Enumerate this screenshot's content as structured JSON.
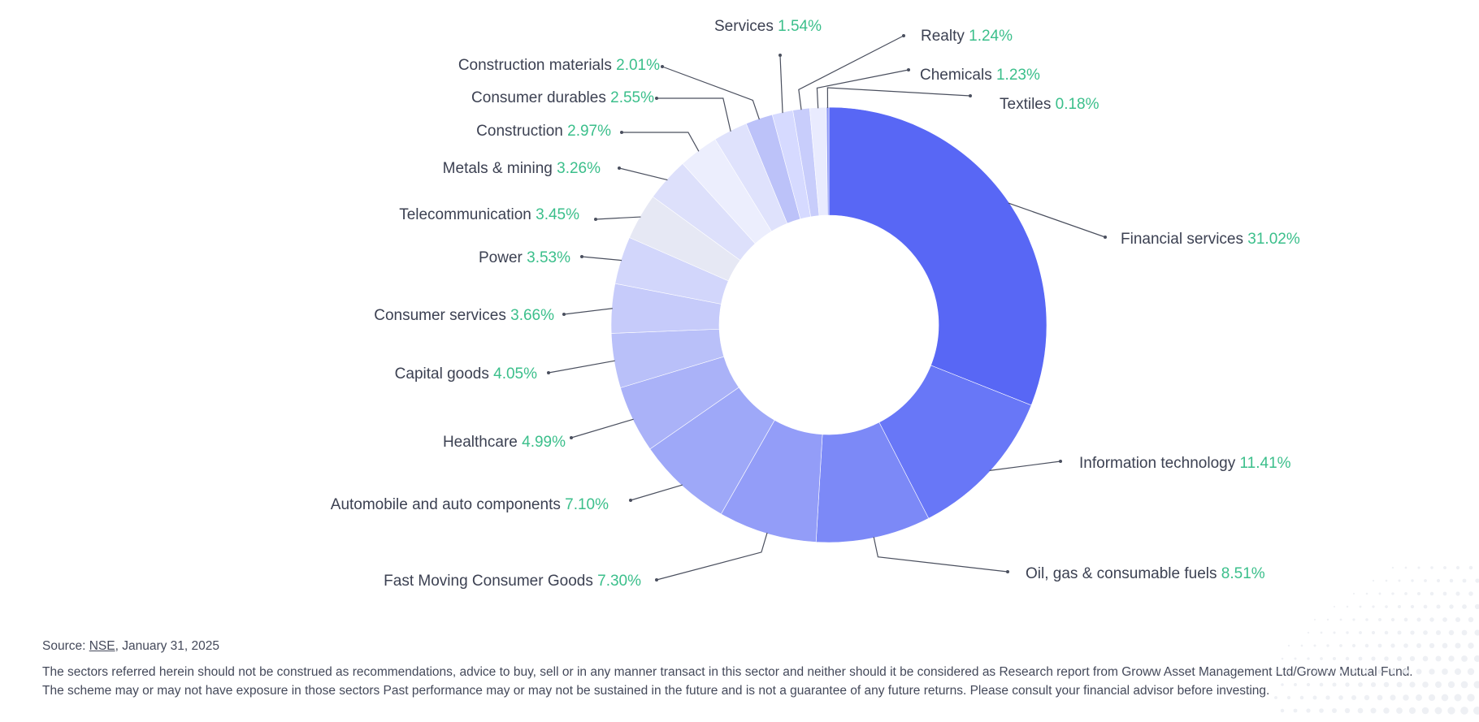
{
  "colors": {
    "value_text": "#3bbf8b",
    "label_text": "#3c4152",
    "leader": "#4a4f5e"
  },
  "footer": {
    "source_prefix": "Source: ",
    "source_link": "NSE",
    "source_suffix": ", January 31, 2025",
    "disclaimer": "The sectors referred herein should not be construed as recommendations, advice to buy, sell or in any manner transact in this sector and neither should it be considered as Research report from Groww Asset Management Ltd/Groww Mutual Fund. The scheme may or may not have exposure in those sectors Past performance may or may not be sustained in the future and is not a guarantee of any future returns. Please consult your financial advisor before investing."
  },
  "chart_data": {
    "type": "pie",
    "title": "",
    "donut": true,
    "legend": "none",
    "slices": [
      {
        "label": "Financial services",
        "value": 31.02,
        "value_label": "31.02%",
        "color": "#5867f5"
      },
      {
        "label": "Information technology",
        "value": 11.41,
        "value_label": "11.41%",
        "color": "#6877f7"
      },
      {
        "label": "Oil, gas & consumable fuels",
        "value": 8.51,
        "value_label": "8.51%",
        "color": "#7c89f7"
      },
      {
        "label": "Fast Moving Consumer Goods",
        "value": 7.3,
        "value_label": "7.30%",
        "color": "#939df8"
      },
      {
        "label": "Automobile and auto components",
        "value": 7.1,
        "value_label": "7.10%",
        "color": "#9ea8f8"
      },
      {
        "label": "Healthcare",
        "value": 4.99,
        "value_label": "4.99%",
        "color": "#aab2f8"
      },
      {
        "label": "Capital goods",
        "value": 4.05,
        "value_label": "4.05%",
        "color": "#b9c0f9"
      },
      {
        "label": "Consumer services",
        "value": 3.66,
        "value_label": "3.66%",
        "color": "#c6cbfa"
      },
      {
        "label": "Power",
        "value": 3.53,
        "value_label": "3.53%",
        "color": "#d2d6fb"
      },
      {
        "label": "Telecommunication",
        "value": 3.45,
        "value_label": "3.45%",
        "color": "#e6e8f4"
      },
      {
        "label": "Metals & mining",
        "value": 3.26,
        "value_label": "3.26%",
        "color": "#dde0fb"
      },
      {
        "label": "Construction",
        "value": 2.97,
        "value_label": "2.97%",
        "color": "#eceefd"
      },
      {
        "label": "Consumer durables",
        "value": 2.55,
        "value_label": "2.55%",
        "color": "#dfe2fc"
      },
      {
        "label": "Construction materials",
        "value": 2.01,
        "value_label": "2.01%",
        "color": "#bcc2f9"
      },
      {
        "label": "Services",
        "value": 1.54,
        "value_label": "1.54%",
        "color": "#d6daff"
      },
      {
        "label": "Realty",
        "value": 1.24,
        "value_label": "1.24%",
        "color": "#c8cdfb"
      },
      {
        "label": "Chemicals",
        "value": 1.23,
        "value_label": "1.23%",
        "color": "#e9ebfe"
      },
      {
        "label": "Textiles",
        "value": 0.18,
        "value_label": "0.18%",
        "color": "#8a95f5"
      }
    ]
  }
}
